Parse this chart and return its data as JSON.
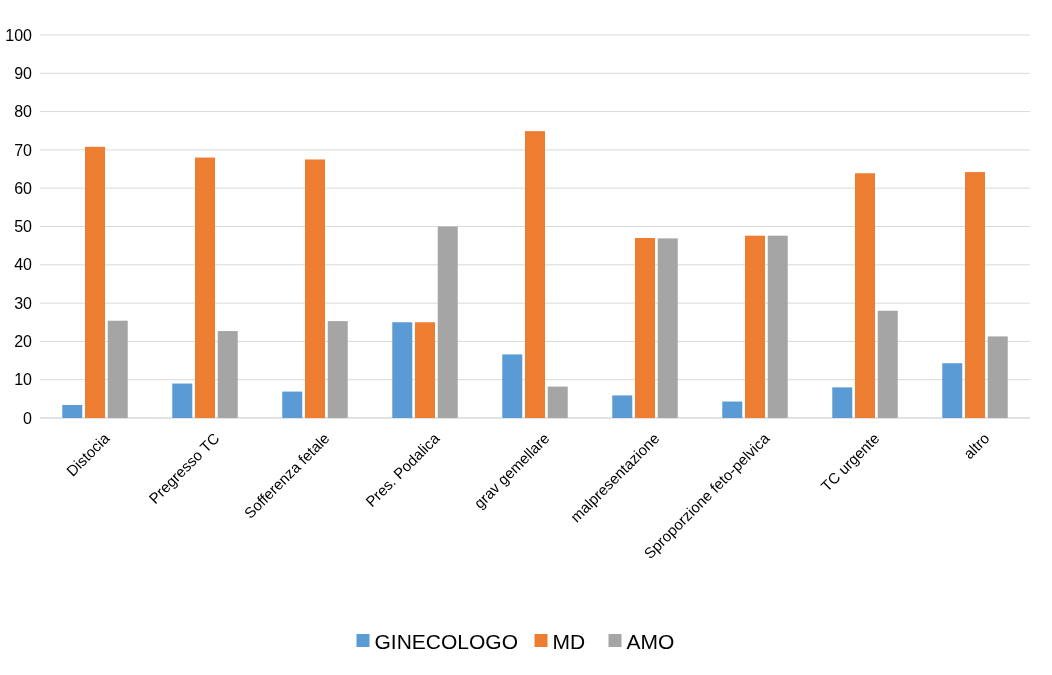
{
  "chart_data": {
    "type": "bar",
    "categories": [
      "Distocia",
      "Pregresso TC",
      "Sofferenza fetale",
      "Pres. Podalica",
      "grav gemellare",
      "malpresentazione",
      "Sproporzione feto-pelvica",
      "TC urgente",
      "altro"
    ],
    "series": [
      {
        "name": "GINECOLOGO",
        "color": "#5b9bd5",
        "values": [
          3.4,
          9.0,
          6.9,
          25,
          16.6,
          5.9,
          4.3,
          8.0,
          14.3
        ]
      },
      {
        "name": "MD",
        "color": "#ed7d31",
        "values": [
          70.8,
          68.0,
          67.5,
          25,
          74.9,
          47.0,
          47.6,
          63.9,
          64.2
        ]
      },
      {
        "name": "AMO",
        "color": "#a5a5a5",
        "values": [
          25.4,
          22.7,
          25.3,
          50,
          8.2,
          46.9,
          47.6,
          28.0,
          21.3
        ]
      }
    ],
    "ylim": [
      0,
      100
    ],
    "yticks": [
      0,
      10,
      20,
      30,
      40,
      50,
      60,
      70,
      80,
      90,
      100
    ],
    "grid": "y",
    "legend": "bottom"
  }
}
